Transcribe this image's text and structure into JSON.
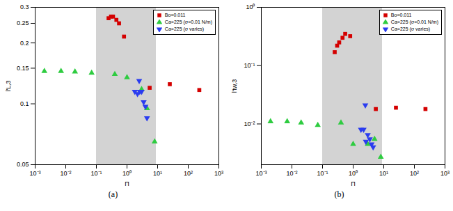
{
  "chart_data": [
    {
      "type": "scatter",
      "caption": "(a)",
      "x_label": "Π",
      "y_label": "l'L,3",
      "log": true,
      "legend": "top-right",
      "xlim": [
        0.001,
        1000
      ],
      "ylim": [
        0.05,
        0.3
      ],
      "xticks": [
        {
          "value": 0.001,
          "label": "10⁻³"
        },
        {
          "value": 0.01,
          "label": "10⁻²"
        },
        {
          "value": 0.1,
          "label": "10⁻¹"
        },
        {
          "value": 1,
          "label": "10⁰"
        },
        {
          "value": 10,
          "label": "10¹"
        },
        {
          "value": 100,
          "label": "10²"
        },
        {
          "value": 1000,
          "label": "10³"
        }
      ],
      "yticks": [
        0.05,
        0.1,
        0.15,
        0.2,
        0.25,
        0.3
      ],
      "shaded_region": [
        0.1,
        9
      ],
      "series": [
        {
          "name": "Bo=0.011",
          "color": "#d40000",
          "marker": "square",
          "x": [
            0.25,
            0.3,
            0.35,
            0.45,
            0.55,
            0.8,
            5.5,
            25,
            230
          ],
          "values": [
            0.265,
            0.27,
            0.27,
            0.26,
            0.25,
            0.215,
            0.12,
            0.125,
            0.117
          ]
        },
        {
          "name": "Ca=225 (σ=0.01 N/m)",
          "color": "#2ecc40",
          "marker": "triangle",
          "x": [
            0.002,
            0.007,
            0.02,
            0.07,
            0.4,
            1,
            3,
            4.5,
            8
          ],
          "values": [
            0.145,
            0.145,
            0.144,
            0.142,
            0.14,
            0.135,
            0.118,
            0.095,
            0.065
          ]
        },
        {
          "name": "Ca=225 (σ varies)",
          "color": "#2a3cf0",
          "marker": "triangle-down",
          "x": [
            2.5,
            1.8,
            2.2,
            2.6,
            3,
            3.5,
            4,
            4.5
          ],
          "values": [
            0.13,
            0.115,
            0.112,
            0.115,
            0.115,
            0.102,
            0.097,
            0.085
          ]
        }
      ]
    },
    {
      "type": "scatter",
      "caption": "(b)",
      "x_label": "Π",
      "y_label": "l'tw,3",
      "log": true,
      "legend": "top-right",
      "xlim": [
        0.001,
        1000
      ],
      "ylim": [
        0.002,
        1
      ],
      "xticks": [
        {
          "value": 0.001,
          "label": "10⁻³"
        },
        {
          "value": 0.01,
          "label": "10⁻²"
        },
        {
          "value": 0.1,
          "label": "10⁻¹"
        },
        {
          "value": 1,
          "label": "10⁰"
        },
        {
          "value": 10,
          "label": "10¹"
        },
        {
          "value": 100,
          "label": "10²"
        },
        {
          "value": 1000,
          "label": "10³"
        }
      ],
      "yticks": [
        {
          "value": 0.01,
          "label": "10⁻²"
        },
        {
          "value": 0.1,
          "label": "10⁻¹"
        },
        {
          "value": 1,
          "label": "10⁰"
        }
      ],
      "shaded_region": [
        0.1,
        9
      ],
      "series": [
        {
          "name": "Bo=0.011",
          "color": "#d40000",
          "marker": "square",
          "x": [
            0.25,
            0.3,
            0.35,
            0.45,
            0.55,
            0.8,
            5.5,
            25,
            230
          ],
          "values": [
            0.17,
            0.22,
            0.25,
            0.3,
            0.35,
            0.32,
            0.018,
            0.019,
            0.018
          ]
        },
        {
          "name": "Ca=225 (σ=0.01 N/m)",
          "color": "#2ecc40",
          "marker": "triangle",
          "x": [
            0.002,
            0.007,
            0.02,
            0.07,
            0.4,
            1,
            3,
            5,
            8
          ],
          "values": [
            0.011,
            0.011,
            0.0105,
            0.0095,
            0.0105,
            0.0045,
            0.0045,
            0.0055,
            0.0027
          ]
        },
        {
          "name": "Ca=225 (σ varies)",
          "color": "#2a3cf0",
          "marker": "triangle-down",
          "x": [
            2.5,
            1.8,
            2.2,
            2.6,
            3,
            3.5,
            4,
            4.5
          ],
          "values": [
            0.021,
            0.008,
            0.008,
            0.005,
            0.0065,
            0.0055,
            0.0045,
            0.004
          ]
        }
      ]
    }
  ]
}
